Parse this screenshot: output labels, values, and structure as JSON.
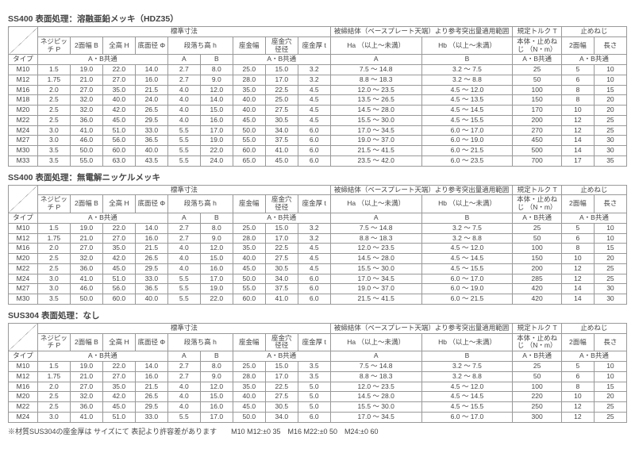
{
  "titles": {
    "t1": "SS400 表面処理：溶融亜鉛メッキ（HDZ35）",
    "t2": "SS400 表面処理：無電解ニッケルメッキ",
    "t3": "SUS304 表面処理：なし"
  },
  "headers": {
    "std_dim": "標準寸法",
    "pitch": "ネジピッチ\nP",
    "two_face": "2面幅\nB",
    "total_h": "全高\nH",
    "bottom_d": "底面径\nΦ",
    "step_h": "段落ち高\nh",
    "seat_w": "座金幅",
    "seat_hole": "座金穴\n径径",
    "seat_t": "座金厚\nt",
    "group_range": "被締結体（ベースプレート天端）より参考突出量適用範囲",
    "ha_range": "Ha\n（以上～未満）",
    "hb_range": "Hb\n（以上～未満）",
    "torque": "規定トルク T",
    "torque_body": "本体・止めねじ\n（N・m）",
    "lock": "止めねじ",
    "lock_face": "2面幅",
    "lock_len": "長さ",
    "type": "タイプ",
    "ab_common": "A・B共通",
    "A": "A",
    "B": "B"
  },
  "rows_t1": [
    {
      "type": "M10",
      "p": "1.5",
      "b": "19.0",
      "h": "22.0",
      "phi": "14.0",
      "ha": "2.7",
      "hb": "8.0",
      "sw": "25.0",
      "sh": "15.0",
      "st": "3.2",
      "ra": "7.5 ～ 14.8",
      "rb": "3.2 ～ 7.5",
      "tq": "25",
      "lw": "5",
      "ll": "10"
    },
    {
      "type": "M12",
      "p": "1.75",
      "b": "21.0",
      "h": "27.0",
      "phi": "16.0",
      "ha": "2.7",
      "hb": "9.0",
      "sw": "28.0",
      "sh": "17.0",
      "st": "3.2",
      "ra": "8.8 ～ 18.3",
      "rb": "3.2 ～ 8.8",
      "tq": "50",
      "lw": "6",
      "ll": "10"
    },
    {
      "type": "M16",
      "p": "2.0",
      "b": "27.0",
      "h": "35.0",
      "phi": "21.5",
      "ha": "4.0",
      "hb": "12.0",
      "sw": "35.0",
      "sh": "22.5",
      "st": "4.5",
      "ra": "12.0 ～ 23.5",
      "rb": "4.5 ～ 12.0",
      "tq": "100",
      "lw": "8",
      "ll": "15"
    },
    {
      "type": "M18",
      "p": "2.5",
      "b": "32.0",
      "h": "40.0",
      "phi": "24.0",
      "ha": "4.0",
      "hb": "14.0",
      "sw": "40.0",
      "sh": "25.0",
      "st": "4.5",
      "ra": "13.5 ～ 26.5",
      "rb": "4.5 ～ 13.5",
      "tq": "150",
      "lw": "8",
      "ll": "20"
    },
    {
      "type": "M20",
      "p": "2.5",
      "b": "32.0",
      "h": "42.0",
      "phi": "26.5",
      "ha": "4.0",
      "hb": "15.0",
      "sw": "40.0",
      "sh": "27.5",
      "st": "4.5",
      "ra": "14.5 ～ 28.0",
      "rb": "4.5 ～ 14.5",
      "tq": "170",
      "lw": "10",
      "ll": "20"
    },
    {
      "type": "M22",
      "p": "2.5",
      "b": "36.0",
      "h": "45.0",
      "phi": "29.5",
      "ha": "4.0",
      "hb": "16.0",
      "sw": "45.0",
      "sh": "30.5",
      "st": "4.5",
      "ra": "15.5 ～ 30.0",
      "rb": "4.5 ～ 15.5",
      "tq": "200",
      "lw": "12",
      "ll": "25"
    },
    {
      "type": "M24",
      "p": "3.0",
      "b": "41.0",
      "h": "51.0",
      "phi": "33.0",
      "ha": "5.5",
      "hb": "17.0",
      "sw": "50.0",
      "sh": "34.0",
      "st": "6.0",
      "ra": "17.0 ～ 34.5",
      "rb": "6.0 ～ 17.0",
      "tq": "270",
      "lw": "12",
      "ll": "25"
    },
    {
      "type": "M27",
      "p": "3.0",
      "b": "46.0",
      "h": "56.0",
      "phi": "36.5",
      "ha": "5.5",
      "hb": "19.0",
      "sw": "55.0",
      "sh": "37.5",
      "st": "6.0",
      "ra": "19.0 ～ 37.0",
      "rb": "6.0 ～ 19.0",
      "tq": "450",
      "lw": "14",
      "ll": "30"
    },
    {
      "type": "M30",
      "p": "3.5",
      "b": "50.0",
      "h": "60.0",
      "phi": "40.0",
      "ha": "5.5",
      "hb": "22.0",
      "sw": "60.0",
      "sh": "41.0",
      "st": "6.0",
      "ra": "21.5 ～ 41.5",
      "rb": "6.0 ～ 21.5",
      "tq": "500",
      "lw": "14",
      "ll": "30"
    },
    {
      "type": "M33",
      "p": "3.5",
      "b": "55.0",
      "h": "63.0",
      "phi": "43.5",
      "ha": "5.5",
      "hb": "24.0",
      "sw": "65.0",
      "sh": "45.0",
      "st": "6.0",
      "ra": "23.5 ～ 42.0",
      "rb": "6.0 ～ 23.5",
      "tq": "700",
      "lw": "17",
      "ll": "35"
    }
  ],
  "rows_t2": [
    {
      "type": "M10",
      "p": "1.5",
      "b": "19.0",
      "h": "22.0",
      "phi": "14.0",
      "ha": "2.7",
      "hb": "8.0",
      "sw": "25.0",
      "sh": "15.0",
      "st": "3.2",
      "ra": "7.5 ～ 14.8",
      "rb": "3.2 ～ 7.5",
      "tq": "25",
      "lw": "5",
      "ll": "10"
    },
    {
      "type": "M12",
      "p": "1.75",
      "b": "21.0",
      "h": "27.0",
      "phi": "16.0",
      "ha": "2.7",
      "hb": "9.0",
      "sw": "28.0",
      "sh": "17.0",
      "st": "3.2",
      "ra": "8.8 ～ 18.3",
      "rb": "3.2 ～ 8.8",
      "tq": "50",
      "lw": "6",
      "ll": "10"
    },
    {
      "type": "M16",
      "p": "2.0",
      "b": "27.0",
      "h": "35.0",
      "phi": "21.5",
      "ha": "4.0",
      "hb": "12.0",
      "sw": "35.0",
      "sh": "22.5",
      "st": "4.5",
      "ra": "12.0 ～ 23.5",
      "rb": "4.5 ～ 12.0",
      "tq": "100",
      "lw": "8",
      "ll": "15"
    },
    {
      "type": "M20",
      "p": "2.5",
      "b": "32.0",
      "h": "42.0",
      "phi": "26.5",
      "ha": "4.0",
      "hb": "15.0",
      "sw": "40.0",
      "sh": "27.5",
      "st": "4.5",
      "ra": "14.5 ～ 28.0",
      "rb": "4.5 ～ 14.5",
      "tq": "150",
      "lw": "10",
      "ll": "20"
    },
    {
      "type": "M22",
      "p": "2.5",
      "b": "36.0",
      "h": "45.0",
      "phi": "29.5",
      "ha": "4.0",
      "hb": "16.0",
      "sw": "45.0",
      "sh": "30.5",
      "st": "4.5",
      "ra": "15.5 ～ 30.0",
      "rb": "4.5 ～ 15.5",
      "tq": "200",
      "lw": "12",
      "ll": "25"
    },
    {
      "type": "M24",
      "p": "3.0",
      "b": "41.0",
      "h": "51.0",
      "phi": "33.0",
      "ha": "5.5",
      "hb": "17.0",
      "sw": "50.0",
      "sh": "34.0",
      "st": "6.0",
      "ra": "17.0 ～ 34.5",
      "rb": "6.0 ～ 17.0",
      "tq": "285",
      "lw": "12",
      "ll": "25"
    },
    {
      "type": "M27",
      "p": "3.0",
      "b": "46.0",
      "h": "56.0",
      "phi": "36.5",
      "ha": "5.5",
      "hb": "19.0",
      "sw": "55.0",
      "sh": "37.5",
      "st": "6.0",
      "ra": "19.0 ～ 37.0",
      "rb": "6.0 ～ 19.0",
      "tq": "420",
      "lw": "14",
      "ll": "30"
    },
    {
      "type": "M30",
      "p": "3.5",
      "b": "50.0",
      "h": "60.0",
      "phi": "40.0",
      "ha": "5.5",
      "hb": "22.0",
      "sw": "60.0",
      "sh": "41.0",
      "st": "6.0",
      "ra": "21.5 ～ 41.5",
      "rb": "6.0 ～ 21.5",
      "tq": "420",
      "lw": "14",
      "ll": "30"
    }
  ],
  "rows_t3": [
    {
      "type": "M10",
      "p": "1.5",
      "b": "19.0",
      "h": "22.0",
      "phi": "14.0",
      "ha": "2.7",
      "hb": "8.0",
      "sw": "25.0",
      "sh": "15.0",
      "st": "3.5",
      "ra": "7.5 ～ 14.8",
      "rb": "3.2 ～ 7.5",
      "tq": "25",
      "lw": "5",
      "ll": "10"
    },
    {
      "type": "M12",
      "p": "1.75",
      "b": "21.0",
      "h": "27.0",
      "phi": "16.0",
      "ha": "2.7",
      "hb": "9.0",
      "sw": "28.0",
      "sh": "17.0",
      "st": "3.5",
      "ra": "8.8 ～ 18.3",
      "rb": "3.2 ～ 8.8",
      "tq": "50",
      "lw": "6",
      "ll": "10"
    },
    {
      "type": "M16",
      "p": "2.0",
      "b": "27.0",
      "h": "35.0",
      "phi": "21.5",
      "ha": "4.0",
      "hb": "12.0",
      "sw": "35.0",
      "sh": "22.5",
      "st": "5.0",
      "ra": "12.0 ～ 23.5",
      "rb": "4.5 ～ 12.0",
      "tq": "100",
      "lw": "8",
      "ll": "15"
    },
    {
      "type": "M20",
      "p": "2.5",
      "b": "32.0",
      "h": "42.0",
      "phi": "26.5",
      "ha": "4.0",
      "hb": "15.0",
      "sw": "40.0",
      "sh": "27.5",
      "st": "5.0",
      "ra": "14.5 ～ 28.0",
      "rb": "4.5 ～ 14.5",
      "tq": "220",
      "lw": "10",
      "ll": "20"
    },
    {
      "type": "M22",
      "p": "2.5",
      "b": "36.0",
      "h": "45.0",
      "phi": "29.5",
      "ha": "4.0",
      "hb": "16.0",
      "sw": "45.0",
      "sh": "30.5",
      "st": "5.0",
      "ra": "15.5 ～ 30.0",
      "rb": "4.5 ～ 15.5",
      "tq": "250",
      "lw": "12",
      "ll": "25"
    },
    {
      "type": "M24",
      "p": "3.0",
      "b": "41.0",
      "h": "51.0",
      "phi": "33.0",
      "ha": "5.5",
      "hb": "17.0",
      "sw": "50.0",
      "sh": "34.0",
      "st": "6.0",
      "ra": "17.0 ～ 34.5",
      "rb": "6.0 ～ 17.0",
      "tq": "300",
      "lw": "12",
      "ll": "25"
    }
  ],
  "footnote": "※材質SUS304の座金厚は サイズにて 表記より許容差があります　　M10 M12:±0 35　M16 M22:±0 50　M24:±0 60"
}
